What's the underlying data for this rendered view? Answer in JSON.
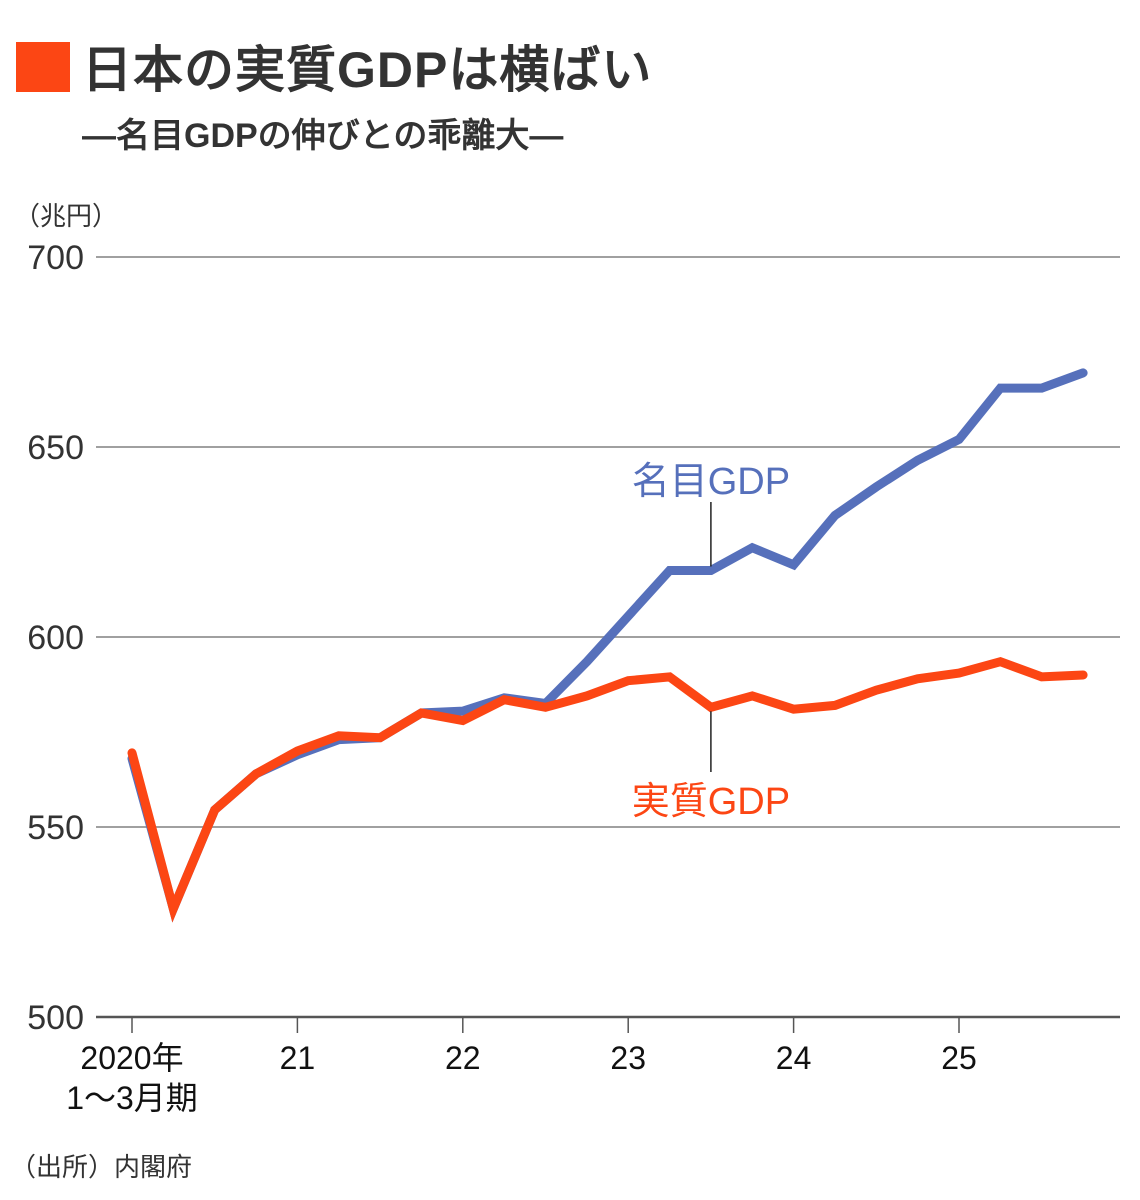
{
  "chart_data": {
    "type": "line",
    "title": "日本の実質GDPは横ばい",
    "subtitle": "―名目GDPの伸びとの乖離大―",
    "ylabel": "（兆円）",
    "xlabel": "",
    "ylim": [
      500,
      700
    ],
    "yticks": [
      500,
      550,
      600,
      650,
      700
    ],
    "grid": true,
    "xtick_labels": [
      {
        "quarter_index": 0,
        "line1": "2020年",
        "line2": "1～3月期"
      },
      {
        "quarter_index": 4,
        "line1": "21",
        "line2": ""
      },
      {
        "quarter_index": 8,
        "line1": "22",
        "line2": ""
      },
      {
        "quarter_index": 12,
        "line1": "23",
        "line2": ""
      },
      {
        "quarter_index": 16,
        "line1": "24",
        "line2": ""
      },
      {
        "quarter_index": 20,
        "line1": "25",
        "line2": ""
      }
    ],
    "x": [
      "2020Q1",
      "2020Q2",
      "2020Q3",
      "2020Q4",
      "2021Q1",
      "2021Q2",
      "2021Q3",
      "2021Q4",
      "2022Q1",
      "2022Q2",
      "2022Q3",
      "2022Q4",
      "2023Q1",
      "2023Q2",
      "2023Q3",
      "2023Q4",
      "2024Q1",
      "2024Q2",
      "2024Q3",
      "2024Q4",
      "2025Q1",
      "2025Q2",
      "2025Q3",
      "2025Q4"
    ],
    "series": [
      {
        "name": "名目GDP",
        "color": "#5670bb",
        "label_at_index": 14,
        "label_position": "above",
        "values": [
          568,
          528.5,
          554.5,
          564,
          569,
          573,
          573.5,
          580,
          580.5,
          584,
          582.5,
          593.5,
          605.5,
          617.5,
          617.5,
          623.5,
          619,
          632,
          639.5,
          646.5,
          652,
          665.5,
          665.5,
          669.5
        ]
      },
      {
        "name": "実質GDP",
        "color": "#fc4614",
        "label_at_index": 14,
        "label_position": "below",
        "values": [
          569.5,
          528.5,
          554.5,
          564,
          570,
          574,
          573.5,
          580,
          578,
          583.5,
          581.5,
          584.5,
          588.5,
          589.5,
          581.5,
          584.5,
          581,
          582,
          586,
          589,
          590.5,
          593.5,
          589.5,
          590
        ]
      }
    ],
    "source": "（出所）内閣府"
  }
}
